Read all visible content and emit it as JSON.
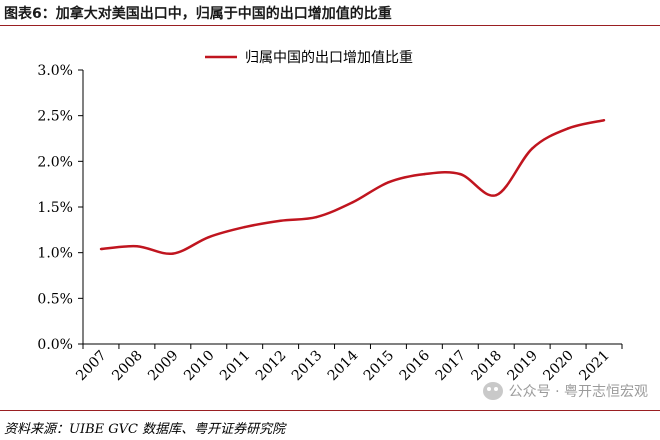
{
  "figure_title": "图表6：加拿大对美国出口中，归属于中国的出口增加值的比重",
  "source_note": "资料来源：UIBE GVC 数据库、粤开证券研究院",
  "watermark": "公众号 · 粤开志恒宏观",
  "watermark_icon": "wechat-logo-icon",
  "colors": {
    "series": "#c0151f",
    "rule": "#9a1f22",
    "axis": "#000000"
  },
  "chart_data": {
    "type": "line",
    "title": "",
    "xlabel": "",
    "ylabel": "",
    "legend_position": "top-center",
    "grid": false,
    "ylim": [
      0,
      0.03
    ],
    "y_ticks": [
      0,
      0.005,
      0.01,
      0.015,
      0.02,
      0.025,
      0.03
    ],
    "y_tick_labels": [
      "0.0%",
      "0.5%",
      "1.0%",
      "1.5%",
      "2.0%",
      "2.5%",
      "3.0%"
    ],
    "x": [
      "2007",
      "2008",
      "2009",
      "2010",
      "2011",
      "2012",
      "2013",
      "2014",
      "2015",
      "2016",
      "2017",
      "2018",
      "2019",
      "2020",
      "2021"
    ],
    "series": [
      {
        "name": "归属中国的出口增加值比重",
        "values": [
          0.0104,
          0.0107,
          0.0099,
          0.0117,
          0.0128,
          0.0135,
          0.0139,
          0.0155,
          0.0177,
          0.0186,
          0.0186,
          0.0163,
          0.0214,
          0.0236,
          0.0245
        ]
      }
    ]
  }
}
